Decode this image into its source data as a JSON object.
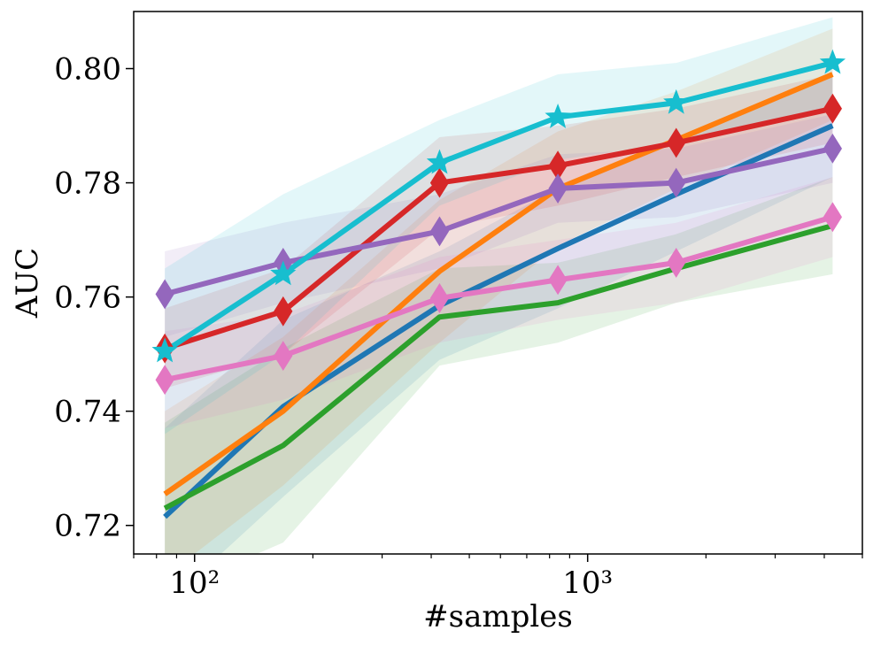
{
  "chart_data": {
    "type": "line",
    "title": "",
    "xlabel": "#samples",
    "ylabel": "AUC",
    "xscale": "log",
    "xlim": [
      70,
      5000
    ],
    "ylim": [
      0.715,
      0.81
    ],
    "x": [
      84,
      168,
      420,
      840,
      1680,
      4200
    ],
    "xticks": [
      {
        "value": 100,
        "label": "10²"
      },
      {
        "value": 1000,
        "label": "10³"
      }
    ],
    "yticks": [
      0.72,
      0.74,
      0.76,
      0.78,
      0.8
    ],
    "ytick_labels": [
      "0.72",
      "0.74",
      "0.76",
      "0.78",
      "0.80"
    ],
    "grid": false,
    "series": [
      {
        "name": "blue",
        "color": "#1f77b4",
        "marker": "none",
        "values": [
          0.7215,
          0.7408,
          0.7585,
          0.7685,
          0.778,
          0.79
        ],
        "band": [
          [
            0.706,
            0.737
          ],
          [
            0.725,
            0.756
          ],
          [
            0.749,
            0.768
          ],
          [
            0.758,
            0.779
          ],
          [
            0.768,
            0.788
          ],
          [
            0.781,
            0.799
          ]
        ]
      },
      {
        "name": "orange",
        "color": "#ff7f0e",
        "marker": "none",
        "values": [
          0.7255,
          0.74,
          0.7645,
          0.779,
          0.7875,
          0.799
        ],
        "band": [
          [
            0.711,
            0.74
          ],
          [
            0.727,
            0.753
          ],
          [
            0.752,
            0.777
          ],
          [
            0.769,
            0.789
          ],
          [
            0.779,
            0.796
          ],
          [
            0.791,
            0.807
          ]
        ]
      },
      {
        "name": "green",
        "color": "#2ca02c",
        "marker": "none",
        "values": [
          0.723,
          0.734,
          0.7565,
          0.759,
          0.765,
          0.7725
        ],
        "band": [
          [
            0.708,
            0.738
          ],
          [
            0.717,
            0.751
          ],
          [
            0.748,
            0.765
          ],
          [
            0.752,
            0.766
          ],
          [
            0.759,
            0.771
          ],
          [
            0.764,
            0.781
          ]
        ]
      },
      {
        "name": "red",
        "color": "#d62728",
        "marker": "diamond",
        "values": [
          0.751,
          0.7575,
          0.78,
          0.783,
          0.787,
          0.793
        ],
        "band": [
          [
            0.744,
            0.758
          ],
          [
            0.75,
            0.765
          ],
          [
            0.772,
            0.788
          ],
          [
            0.776,
            0.79
          ],
          [
            0.781,
            0.793
          ],
          [
            0.787,
            0.799
          ]
        ]
      },
      {
        "name": "purple",
        "color": "#9467bd",
        "marker": "diamond",
        "values": [
          0.7605,
          0.766,
          0.7715,
          0.779,
          0.78,
          0.786
        ],
        "band": [
          [
            0.753,
            0.768
          ],
          [
            0.759,
            0.773
          ],
          [
            0.765,
            0.778
          ],
          [
            0.773,
            0.785
          ],
          [
            0.774,
            0.786
          ],
          [
            0.78,
            0.792
          ]
        ]
      },
      {
        "name": "pink",
        "color": "#e377c2",
        "marker": "diamond",
        "values": [
          0.7455,
          0.7497,
          0.7598,
          0.763,
          0.766,
          0.774
        ],
        "band": [
          [
            0.737,
            0.754
          ],
          [
            0.742,
            0.757
          ],
          [
            0.752,
            0.767
          ],
          [
            0.756,
            0.77
          ],
          [
            0.759,
            0.773
          ],
          [
            0.767,
            0.781
          ]
        ]
      },
      {
        "name": "cyan",
        "color": "#17becf",
        "marker": "star",
        "values": [
          0.7505,
          0.764,
          0.7835,
          0.7915,
          0.794,
          0.801
        ],
        "band": [
          [
            0.736,
            0.765
          ],
          [
            0.75,
            0.778
          ],
          [
            0.776,
            0.791
          ],
          [
            0.784,
            0.799
          ],
          [
            0.787,
            0.801
          ],
          [
            0.793,
            0.809
          ]
        ]
      }
    ]
  }
}
